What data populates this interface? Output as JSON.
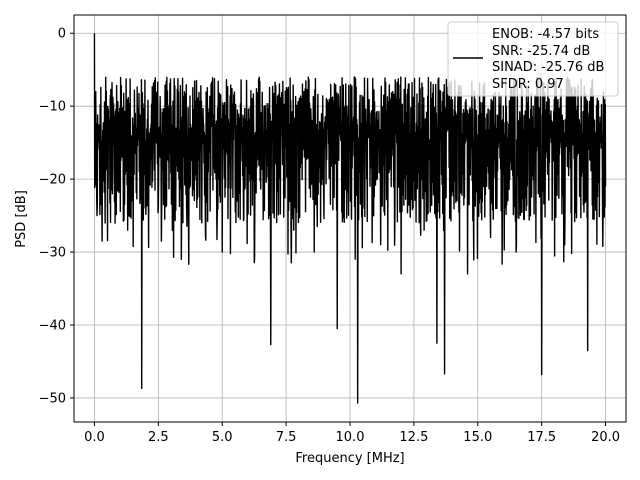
{
  "chart_data": {
    "type": "line",
    "xlabel": "Frequency [MHz]",
    "ylabel": "PSD [dB]",
    "xlim": [
      -0.8,
      20.8
    ],
    "ylim": [
      -53.3,
      2.5
    ],
    "x_ticks": [
      0.0,
      2.5,
      5.0,
      7.5,
      10.0,
      12.5,
      15.0,
      17.5,
      20.0
    ],
    "x_tick_labels": [
      "0.0",
      "2.5",
      "5.0",
      "7.5",
      "10.0",
      "12.5",
      "15.0",
      "17.5",
      "20.0"
    ],
    "y_ticks": [
      0,
      -10,
      -20,
      -30,
      -40,
      -50
    ],
    "y_tick_labels": [
      "0",
      "−10",
      "−20",
      "−30",
      "−40",
      "−50"
    ],
    "grid": true,
    "legend_position": "top-right",
    "legend": [
      "ENOB: -4.57 bits",
      "SNR: -25.74 dB",
      "SINAD: -25.76 dB",
      "SFDR: 0.97"
    ],
    "line_color": "#000000",
    "series": [
      {
        "x": [
          0.0,
          0.02,
          0.05,
          0.1,
          0.2,
          0.3,
          0.5,
          0.7,
          1.0,
          1.3,
          1.6,
          1.85,
          2.0,
          2.5,
          3.0,
          3.4,
          3.8,
          4.2,
          4.6,
          5.0,
          5.5,
          6.0,
          6.4,
          6.9,
          7.3,
          7.8,
          8.2,
          8.6,
          9.1,
          9.5,
          10.0,
          10.3,
          10.7,
          11.2,
          11.6,
          12.0,
          12.5,
          12.9,
          13.4,
          13.7,
          14.2,
          14.6,
          15.0,
          15.5,
          16.0,
          16.5,
          17.0,
          17.5,
          17.9,
          18.4,
          18.9,
          19.3,
          19.6,
          20.0
        ],
        "y": [
          0,
          -19.5,
          -8,
          -25,
          -14,
          -28.5,
          -12,
          -22,
          -13,
          -27,
          -11,
          -48.7,
          -15,
          -24,
          -10,
          -31,
          -13,
          -26,
          -9,
          -30,
          -12,
          -24,
          -10,
          -42.7,
          -13,
          -27,
          -8,
          -30,
          -11,
          -40.5,
          -14,
          -50.7,
          -12,
          -29,
          -9,
          -33,
          -15,
          -27,
          -42.5,
          -46.7,
          -11,
          -33,
          -14,
          -28,
          -10,
          -30,
          -12,
          -46.8,
          -13,
          -29,
          -10,
          -43.5,
          -15,
          -21
        ]
      }
    ]
  }
}
